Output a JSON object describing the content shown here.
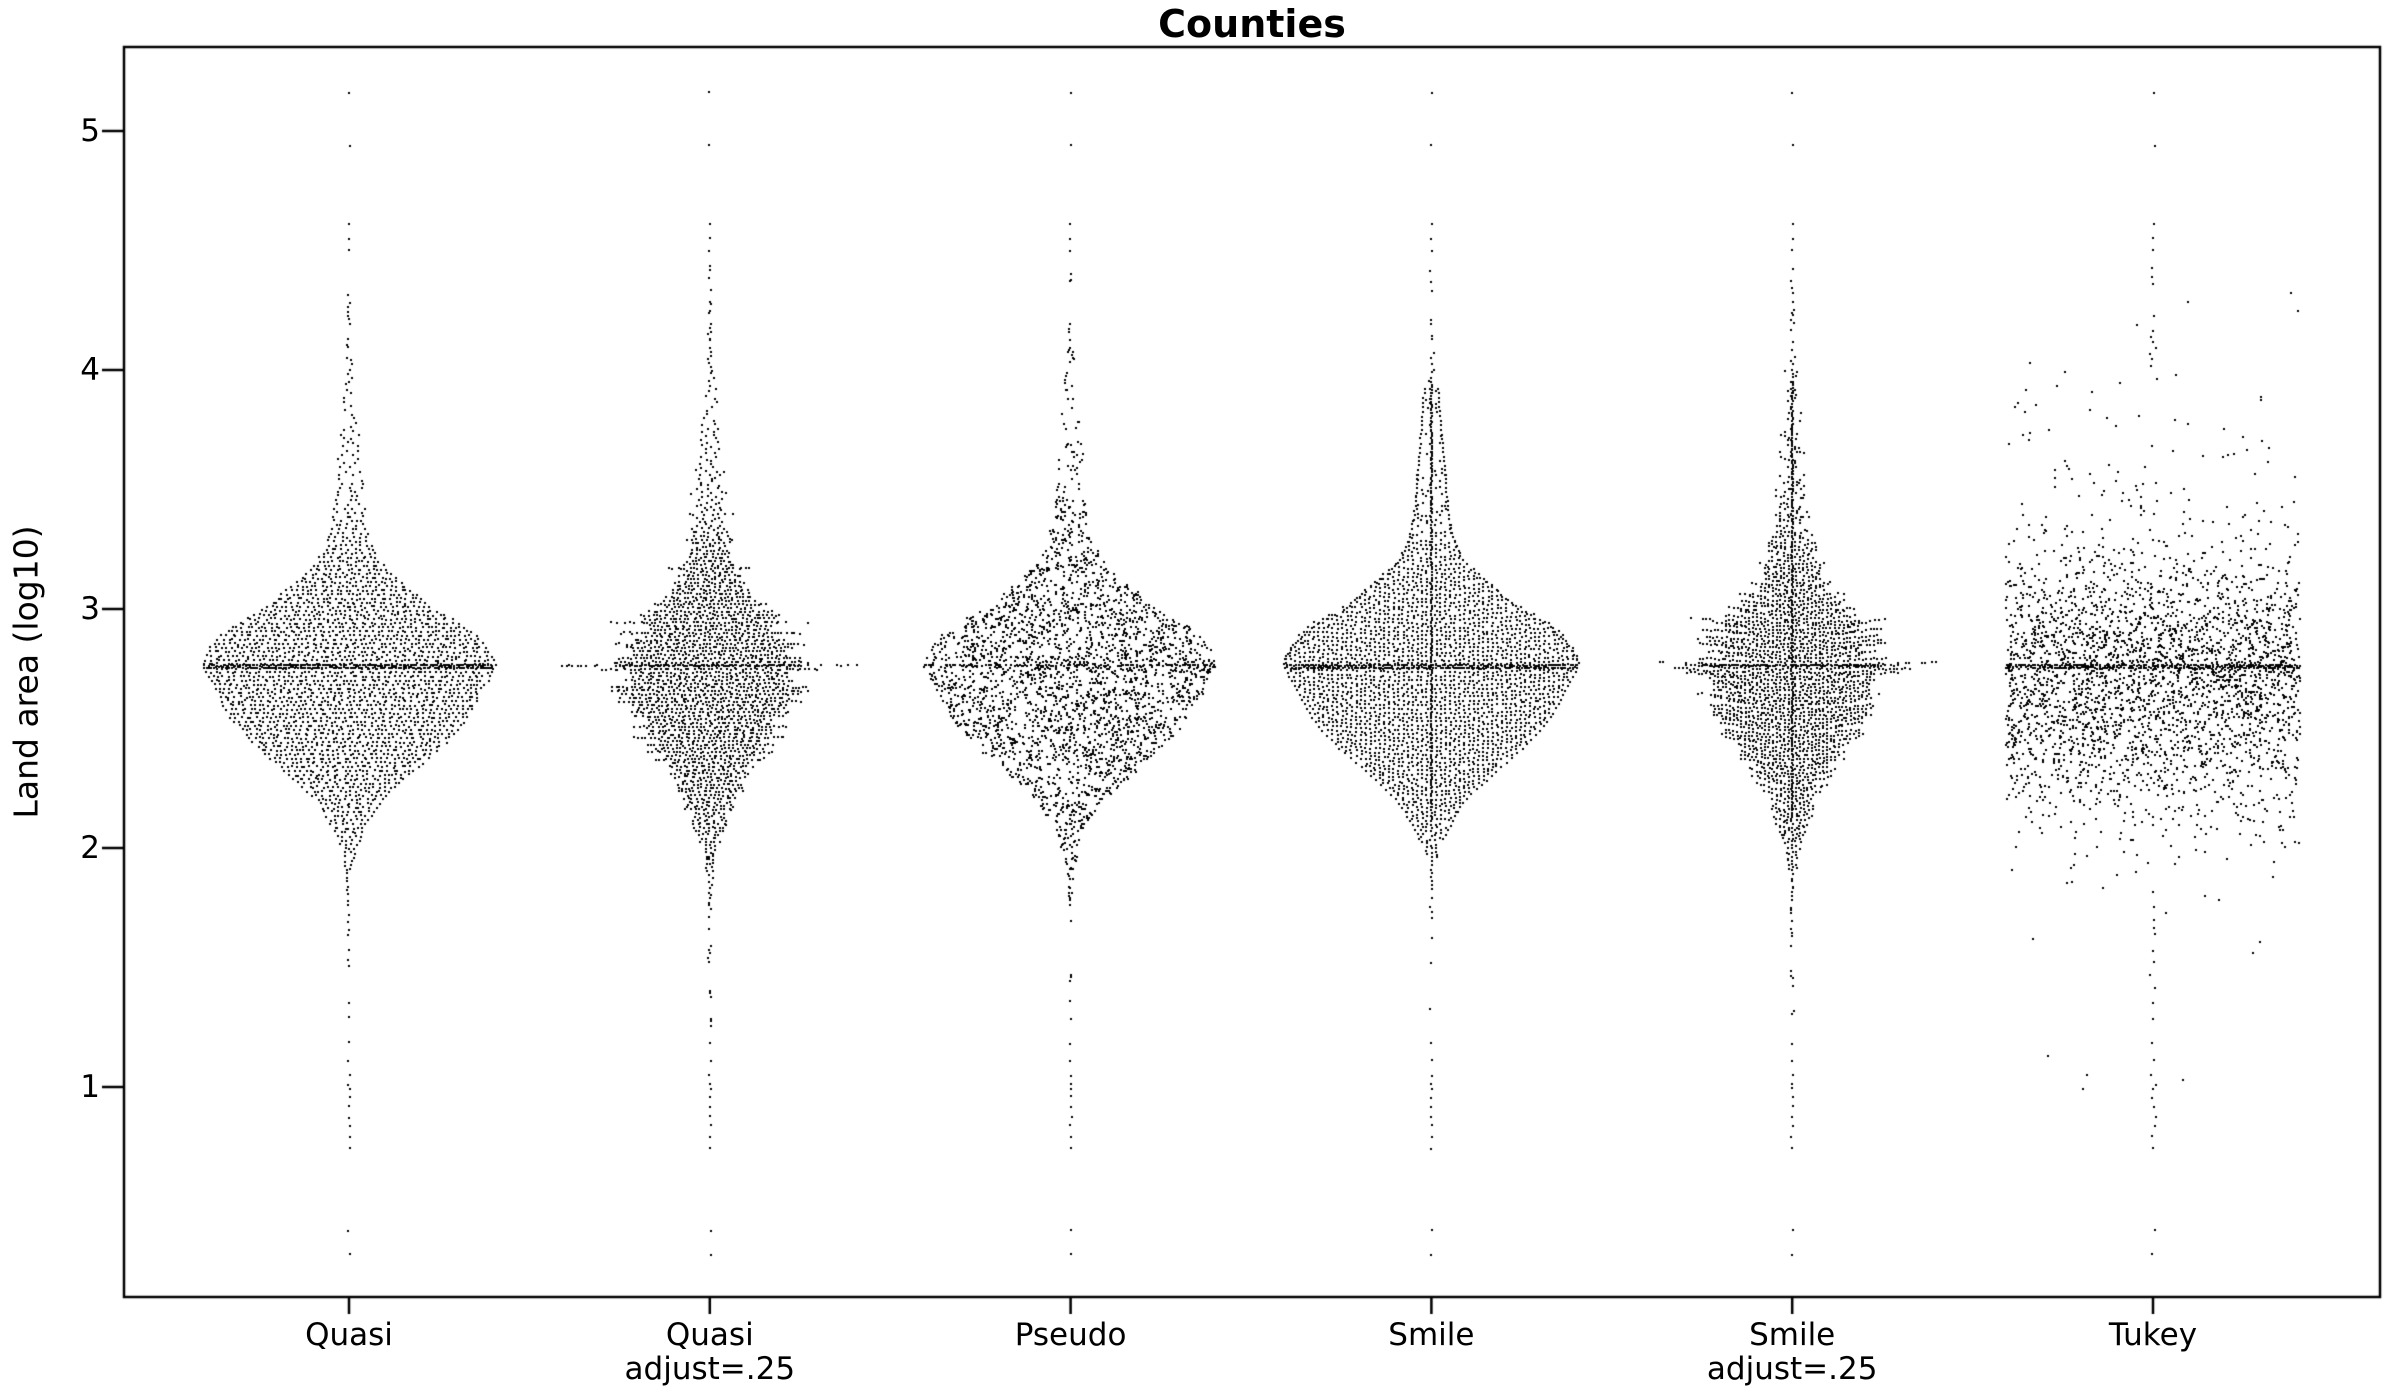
{
  "chart_data": {
    "type": "beeswarm",
    "title": "Counties",
    "ylabel": "Land area (log10)",
    "yticks": [
      "1",
      "2",
      "3",
      "4",
      "5"
    ],
    "ylim": [
      0.12,
      5.35
    ],
    "grid": false,
    "point_color": "#000000",
    "points_per_category": 3000,
    "categories": [
      {
        "label": "Quasi",
        "sublabel": "",
        "style": "quasi"
      },
      {
        "label": "Quasi",
        "sublabel": "adjust=.25",
        "style": "quasi-adjust"
      },
      {
        "label": "Pseudo",
        "sublabel": "",
        "style": "pseudo"
      },
      {
        "label": "Smile",
        "sublabel": "",
        "style": "smile"
      },
      {
        "label": "Smile",
        "sublabel": "adjust=.25",
        "style": "smile-adjust"
      },
      {
        "label": "Tukey",
        "sublabel": "",
        "style": "tukey"
      }
    ],
    "median_v": 2.758,
    "width_profile": [
      [
        1.25,
        0.6
      ],
      [
        1.45,
        0.7
      ],
      [
        1.6,
        1.0
      ],
      [
        1.75,
        1.6
      ],
      [
        1.85,
        2.6
      ],
      [
        1.95,
        6
      ],
      [
        2.0,
        9
      ],
      [
        2.05,
        13
      ],
      [
        2.1,
        20
      ],
      [
        2.15,
        26
      ],
      [
        2.2,
        34
      ],
      [
        2.25,
        47
      ],
      [
        2.3,
        60
      ],
      [
        2.35,
        73
      ],
      [
        2.4,
        88
      ],
      [
        2.45,
        100
      ],
      [
        2.5,
        111
      ],
      [
        2.55,
        120
      ],
      [
        2.6,
        127
      ],
      [
        2.65,
        133
      ],
      [
        2.7,
        140
      ],
      [
        2.74,
        145
      ],
      [
        2.77,
        148
      ],
      [
        2.8,
        144
      ],
      [
        2.84,
        139
      ],
      [
        2.88,
        131
      ],
      [
        2.92,
        120
      ],
      [
        2.96,
        104
      ],
      [
        3.0,
        86
      ],
      [
        3.05,
        72
      ],
      [
        3.1,
        58
      ],
      [
        3.15,
        43
      ],
      [
        3.2,
        32
      ],
      [
        3.25,
        26
      ],
      [
        3.3,
        22
      ],
      [
        3.35,
        19
      ],
      [
        3.4,
        17
      ],
      [
        3.5,
        15
      ],
      [
        3.6,
        13
      ],
      [
        3.7,
        11
      ],
      [
        3.8,
        9
      ],
      [
        3.9,
        7
      ],
      [
        3.95,
        6
      ],
      [
        4.0,
        5
      ],
      [
        4.05,
        3.5
      ],
      [
        4.1,
        2.5
      ],
      [
        4.2,
        1.8
      ],
      [
        4.3,
        1.4
      ],
      [
        4.4,
        1.1
      ],
      [
        4.45,
        1.0
      ]
    ],
    "density_profile": [
      [
        1.25,
        0.5
      ],
      [
        1.45,
        0.6
      ],
      [
        1.6,
        0.9
      ],
      [
        1.75,
        1.4
      ],
      [
        1.85,
        2.2
      ],
      [
        1.95,
        5
      ],
      [
        2.0,
        8
      ],
      [
        2.05,
        12
      ],
      [
        2.1,
        18
      ],
      [
        2.15,
        24
      ],
      [
        2.2,
        32
      ],
      [
        2.25,
        45
      ],
      [
        2.3,
        58
      ],
      [
        2.35,
        71
      ],
      [
        2.4,
        86
      ],
      [
        2.45,
        98
      ],
      [
        2.5,
        109
      ],
      [
        2.55,
        118
      ],
      [
        2.6,
        125
      ],
      [
        2.65,
        131
      ],
      [
        2.7,
        138
      ],
      [
        2.74,
        143
      ],
      [
        2.77,
        146
      ],
      [
        2.8,
        142
      ],
      [
        2.84,
        137
      ],
      [
        2.88,
        129
      ],
      [
        2.92,
        118
      ],
      [
        2.96,
        102
      ],
      [
        3.0,
        84
      ],
      [
        3.05,
        70
      ],
      [
        3.1,
        56
      ],
      [
        3.15,
        41
      ],
      [
        3.2,
        30
      ],
      [
        3.25,
        22
      ],
      [
        3.3,
        16
      ],
      [
        3.35,
        12
      ],
      [
        3.4,
        9.5
      ],
      [
        3.5,
        6.5
      ],
      [
        3.6,
        5
      ],
      [
        3.7,
        4
      ],
      [
        3.8,
        3.2
      ],
      [
        3.9,
        2.6
      ],
      [
        3.95,
        2.3
      ],
      [
        4.0,
        2.0
      ],
      [
        4.05,
        1.8
      ],
      [
        4.1,
        1.5
      ],
      [
        4.2,
        1.2
      ],
      [
        4.3,
        1.0
      ],
      [
        4.4,
        0.9
      ],
      [
        4.45,
        0.8
      ]
    ],
    "outliers_top": [
      5.16,
      4.94,
      4.61,
      4.55,
      4.5
    ],
    "outliers_bottom": [
      1.184,
      1.11,
      1.05,
      1.013,
      0.995,
      0.958,
      0.918,
      0.874,
      0.838,
      0.79,
      0.745,
      0.4,
      0.3
    ],
    "adjust_whiskers": [
      [
        2.758,
        150
      ],
      [
        2.95,
        103
      ],
      [
        2.858,
        95
      ],
      [
        2.63,
        95
      ],
      [
        2.55,
        78
      ]
    ],
    "tukey_low_scatter": [
      [
        1.13,
        -105
      ],
      [
        1.05,
        -66
      ],
      [
        1.03,
        30
      ],
      [
        0.99,
        -70
      ],
      [
        1.56,
        100
      ],
      [
        1.62,
        -120
      ]
    ]
  }
}
